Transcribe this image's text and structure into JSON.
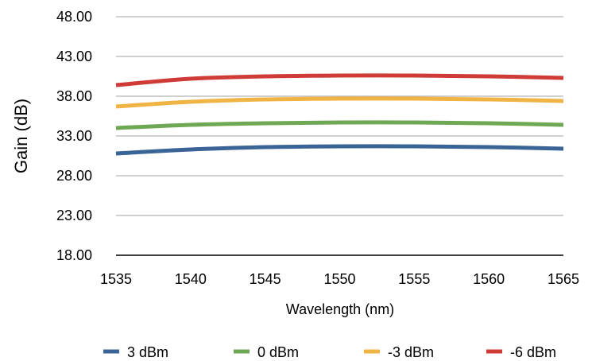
{
  "chart_data": {
    "type": "line",
    "xlabel": "Wavelength (nm)",
    "ylabel": "Gain (dB)",
    "xlim": [
      1535,
      1565
    ],
    "ylim": [
      18.0,
      48.0
    ],
    "x_ticks": [
      "1535",
      "1540",
      "1545",
      "1550",
      "1555",
      "1560",
      "1565"
    ],
    "y_ticks": [
      "18.00",
      "23.00",
      "28.00",
      "33.00",
      "38.00",
      "43.00",
      "48.00"
    ],
    "grid": "horizontal",
    "legend_position": "bottom",
    "x": [
      1535,
      1540,
      1545,
      1550,
      1555,
      1560,
      1565
    ],
    "series": [
      {
        "name": "3 dBm",
        "color": "#3b6496",
        "values": [
          30.8,
          31.3,
          31.6,
          31.7,
          31.7,
          31.6,
          31.4
        ]
      },
      {
        "name": "0 dBm",
        "color": "#6fa854",
        "values": [
          34.0,
          34.4,
          34.6,
          34.7,
          34.7,
          34.6,
          34.4
        ]
      },
      {
        "name": "-3 dBm",
        "color": "#f0b444",
        "values": [
          36.7,
          37.3,
          37.6,
          37.7,
          37.7,
          37.6,
          37.4
        ]
      },
      {
        "name": "-6 dBm",
        "color": "#cf3b37",
        "values": [
          39.4,
          40.2,
          40.5,
          40.6,
          40.6,
          40.5,
          40.3
        ]
      }
    ]
  }
}
